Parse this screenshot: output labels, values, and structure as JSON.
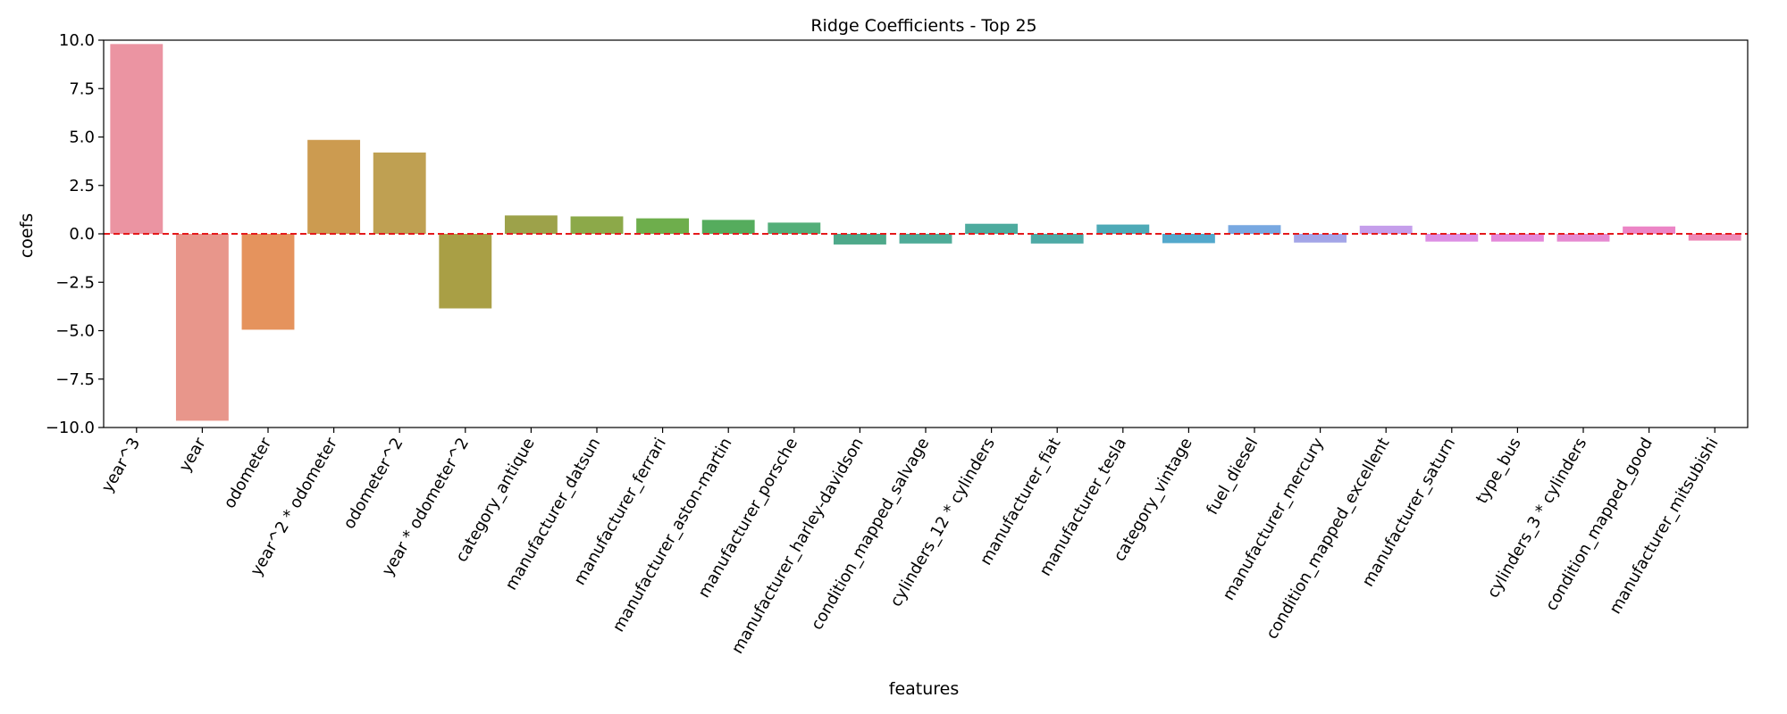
{
  "chart_data": {
    "type": "bar",
    "title": "Ridge Coefficients - Top 25",
    "xlabel": "features",
    "ylabel": "coefs",
    "ylim": [
      -10,
      10
    ],
    "yticks": [
      10,
      7.5,
      5,
      2.5,
      0,
      -2.5,
      -5,
      -7.5,
      -10
    ],
    "ytick_labels": [
      "10.0",
      "7.5",
      "5.0",
      "2.5",
      "0.0",
      "−2.5",
      "−5.0",
      "−7.5",
      "−10.0"
    ],
    "grid": false,
    "reference_line": {
      "y": 0,
      "style": "dashed",
      "color": "#e41a1c"
    },
    "categories": [
      "year^3",
      "year",
      "odometer",
      "year^2 * odometer",
      "odometer^2",
      "year * odometer^2",
      "category_antique",
      "manufacturer_datsun",
      "manufacturer_ferrari",
      "manufacturer_aston-martin",
      "manufacturer_porsche",
      "manufacturer_harley-davidson",
      "condition_mapped_salvage",
      "cylinders_12 * cylinders",
      "manufacturer_fiat",
      "manufacturer_tesla",
      "category_vintage",
      "fuel_diesel",
      "manufacturer_mercury",
      "condition_mapped_excellent",
      "manufacturer_saturn",
      "type_bus",
      "cylinders_3 * cylinders",
      "condition_mapped_good",
      "manufacturer_mitsubishi"
    ],
    "values": [
      9.8,
      -9.65,
      -4.95,
      4.85,
      4.2,
      -3.85,
      0.95,
      0.9,
      0.8,
      0.72,
      0.58,
      -0.55,
      -0.5,
      0.52,
      -0.5,
      0.48,
      -0.48,
      0.45,
      -0.45,
      0.42,
      -0.4,
      -0.4,
      -0.4,
      0.38,
      -0.35
    ],
    "colors": [
      "#eb94a2",
      "#e8968b",
      "#e5935d",
      "#cc9b50",
      "#bfa052",
      "#a99f45",
      "#9da24a",
      "#8ca949",
      "#6eae4c",
      "#55ac5d",
      "#54ae79",
      "#4ea98a",
      "#4fab98",
      "#4dab9e",
      "#4eaaa6",
      "#4eaab7",
      "#53a8cc",
      "#78a8e1",
      "#a3a5e7",
      "#c59eeb",
      "#dc8fe4",
      "#e488d9",
      "#e68ad1",
      "#ec85c6",
      "#ee89b6"
    ]
  }
}
